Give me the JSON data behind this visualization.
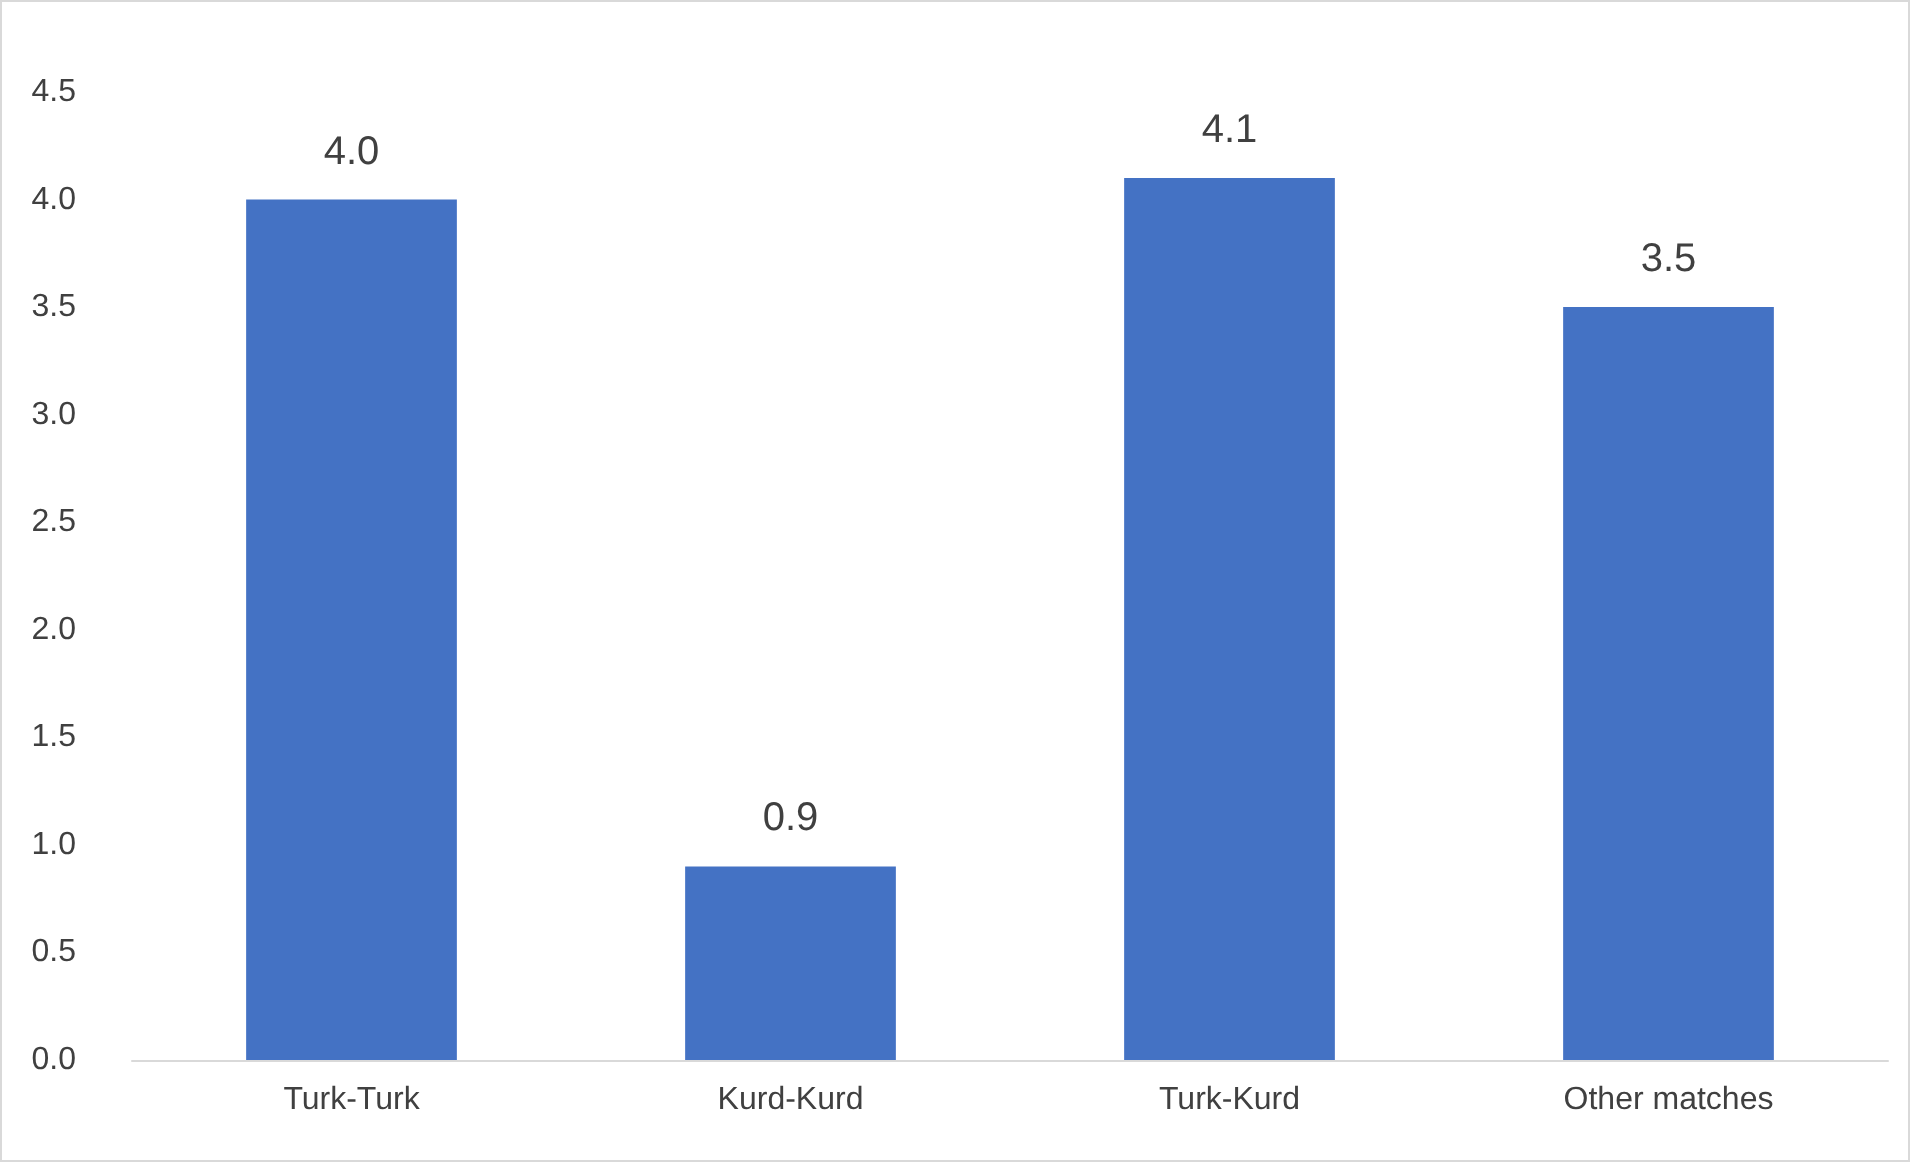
{
  "chart_data": {
    "type": "bar",
    "categories": [
      "Turk-Turk",
      "Kurd-Kurd",
      "Turk-Kurd",
      "Other matches"
    ],
    "values": [
      4.0,
      0.9,
      4.1,
      3.5
    ],
    "value_labels": [
      "4.0",
      "0.9",
      "4.1",
      "3.5"
    ],
    "color": "#4472c4",
    "ylim": [
      0,
      4.5
    ],
    "yticks": [
      {
        "value": 0,
        "label": "0.0"
      },
      {
        "value": 0.5,
        "label": "0.5"
      },
      {
        "value": 1,
        "label": "1.0"
      },
      {
        "value": 1.5,
        "label": "1.5"
      },
      {
        "value": 2,
        "label": "2.0"
      },
      {
        "value": 2.5,
        "label": "2.5"
      },
      {
        "value": 3,
        "label": "3.0"
      },
      {
        "value": 3.5,
        "label": "3.5"
      },
      {
        "value": 4,
        "label": "4.0"
      },
      {
        "value": 4.5,
        "label": "4.5"
      }
    ],
    "grid": false
  }
}
